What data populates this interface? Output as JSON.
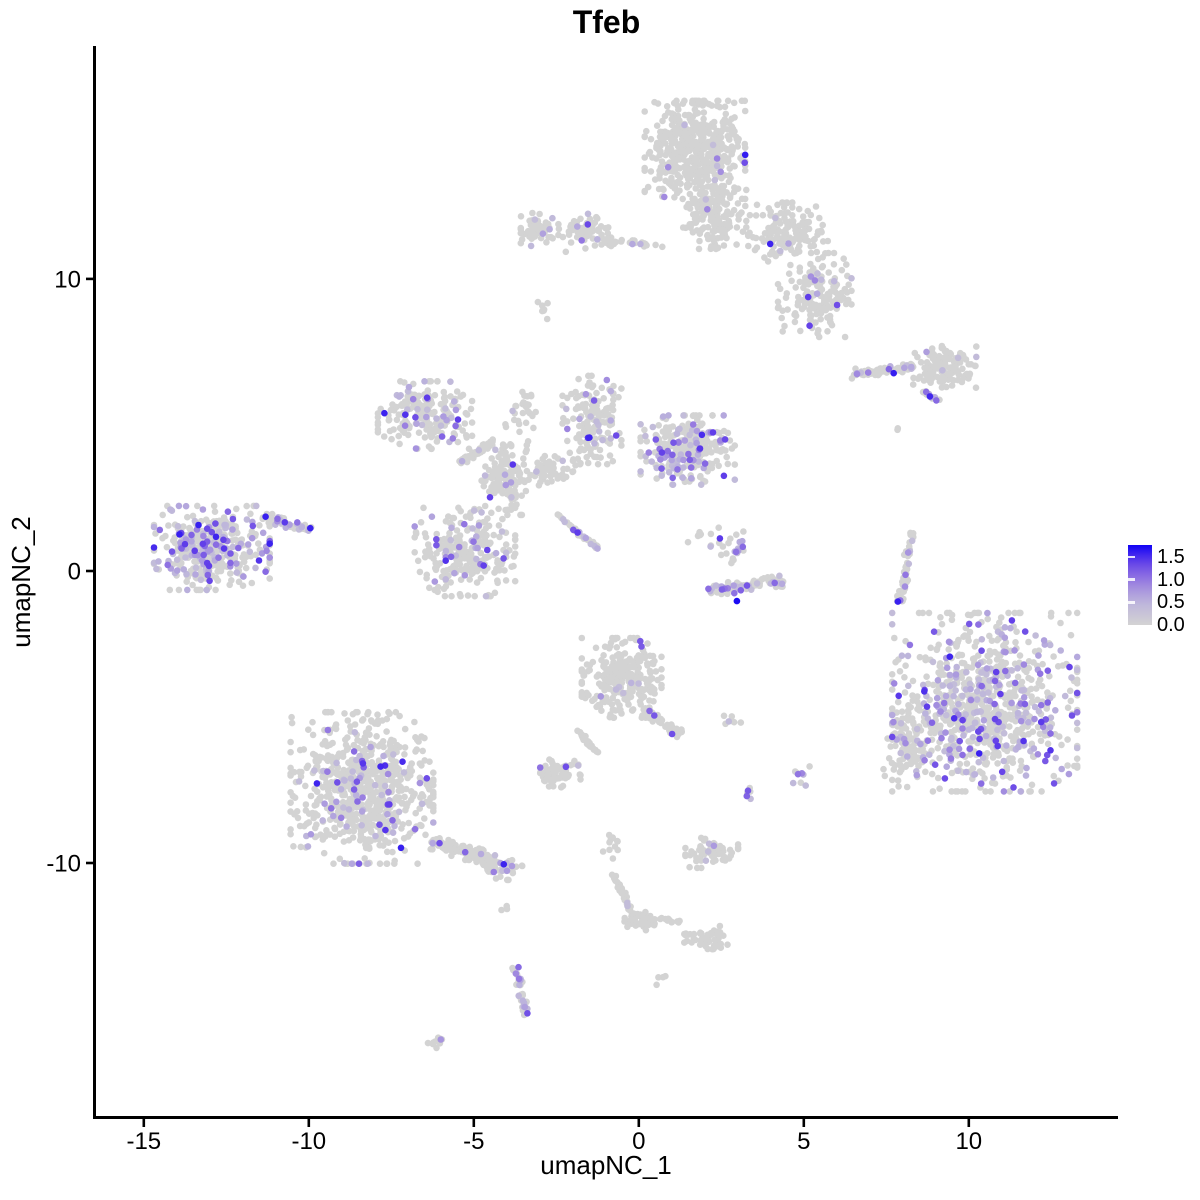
{
  "title": "Tfeb",
  "axes": {
    "x_label": "umapNC_1",
    "y_label": "umapNC_2",
    "x_tick_labels": [
      "-15",
      "-10",
      "-5",
      "0",
      "5",
      "10"
    ],
    "x_tick_values": [
      -15,
      -10,
      -5,
      0,
      5,
      10
    ],
    "y_tick_labels": [
      "10",
      "0",
      "-10"
    ],
    "y_tick_values": [
      10,
      0,
      -10
    ]
  },
  "legend": {
    "ticks": [
      "1.5",
      "1.0",
      "0.5",
      "0.0"
    ],
    "tick_values": [
      1.5,
      1.0,
      0.5,
      0.0
    ],
    "max_value": 1.75,
    "low_color": "#D3D3D3",
    "high_color": "#1002F5"
  },
  "chart_data": {
    "type": "scatter",
    "title": "Tfeb",
    "xlabel": "umapNC_1",
    "ylabel": "umapNC_2",
    "xlim": [
      -16.48,
      14.52
    ],
    "ylim": [
      -18.73,
      18.01
    ],
    "grid": false,
    "legend_position": "right",
    "color_scale": {
      "low": "#D3D3D3",
      "high": "#1002F5",
      "domain": [
        0,
        1.75
      ]
    },
    "point_radius_px": 3.3,
    "seed": 42,
    "clusters": [
      {
        "name": "top-main",
        "shape": "blob",
        "cx": 1.7,
        "cy": 14.42,
        "rx": 1.45,
        "ry": 1.6,
        "n": 520,
        "frac": 0.03
      },
      {
        "name": "top-neck",
        "shape": "blob",
        "cx": 2.3,
        "cy": 12.29,
        "rx": 0.91,
        "ry": 1.2,
        "n": 170,
        "frac": 0.04
      },
      {
        "name": "top-right-upper",
        "shape": "blob",
        "cx": 4.52,
        "cy": 11.61,
        "rx": 1.15,
        "ry": 0.96,
        "n": 150,
        "frac": 0.05
      },
      {
        "name": "top-right-lower",
        "shape": "blob",
        "cx": 5.33,
        "cy": 9.45,
        "rx": 1.06,
        "ry": 1.37,
        "n": 170,
        "frac": 0.07
      },
      {
        "name": "top-left-a",
        "shape": "blob",
        "cx": -3.0,
        "cy": 11.68,
        "rx": 0.55,
        "ry": 0.55,
        "n": 55,
        "frac": 0.1
      },
      {
        "name": "top-left-b",
        "shape": "blob",
        "cx": -1.64,
        "cy": 11.58,
        "rx": 0.76,
        "ry": 0.62,
        "n": 75,
        "frac": 0.05
      },
      {
        "name": "top-left-bridge",
        "shape": "streak",
        "cx": -0.27,
        "cy": 11.23,
        "len": 2.0,
        "w": 0.18,
        "rot": -5,
        "n": 28,
        "frac": 0.05
      },
      {
        "name": "isolated-dot",
        "shape": "blob",
        "cx": -2.85,
        "cy": 8.94,
        "rx": 0.2,
        "ry": 0.3,
        "n": 8,
        "frac": 0
      },
      {
        "name": "right-arm",
        "shape": "streak",
        "cx": 7.36,
        "cy": 6.88,
        "len": 1.9,
        "w": 0.3,
        "rot": 8,
        "n": 80,
        "frac": 0.08
      },
      {
        "name": "right-arm-head",
        "shape": "blob",
        "cx": 9.27,
        "cy": 6.99,
        "rx": 0.91,
        "ry": 0.68,
        "n": 130,
        "frac": 0.03
      },
      {
        "name": "right-arm-spur",
        "shape": "streak",
        "cx": 8.82,
        "cy": 5.99,
        "len": 0.65,
        "w": 0.18,
        "rot": -35,
        "n": 16,
        "frac": 0.35
      },
      {
        "name": "right-arm-dot",
        "shape": "blob",
        "cx": 7.91,
        "cy": 4.9,
        "rx": 0.1,
        "ry": 0.1,
        "n": 2,
        "frac": 0
      },
      {
        "name": "mid-nw",
        "shape": "blob",
        "cx": -6.48,
        "cy": 5.34,
        "rx": 1.36,
        "ry": 1.1,
        "n": 210,
        "frac": 0.12
      },
      {
        "name": "mid-nw-bridge",
        "shape": "streak",
        "cx": -4.88,
        "cy": 4.08,
        "len": 1.3,
        "w": 0.22,
        "rot": 35,
        "n": 45,
        "frac": 0.1
      },
      {
        "name": "mid-col",
        "shape": "blob",
        "cx": -4.06,
        "cy": 3.18,
        "rx": 0.67,
        "ry": 1.2,
        "n": 140,
        "frac": 0.06
      },
      {
        "name": "mid-sw",
        "shape": "blob",
        "cx": -5.27,
        "cy": 0.65,
        "rx": 1.45,
        "ry": 1.44,
        "n": 270,
        "frac": 0.13
      },
      {
        "name": "mid-v-left",
        "shape": "blob",
        "cx": -1.42,
        "cy": 5.17,
        "rx": 0.85,
        "ry": 1.44,
        "n": 170,
        "frac": 0.09
      },
      {
        "name": "mid-east",
        "shape": "blob",
        "cx": 1.48,
        "cy": 4.14,
        "rx": 1.36,
        "ry": 1.13,
        "n": 290,
        "frac": 0.22
      },
      {
        "name": "mid-diag-streak",
        "shape": "streak",
        "cx": -1.85,
        "cy": 1.34,
        "len": 1.7,
        "w": 0.15,
        "rot": -42,
        "n": 38,
        "frac": 0.3
      },
      {
        "name": "mid-center-scatter",
        "shape": "blob",
        "cx": -2.76,
        "cy": 3.46,
        "rx": 0.8,
        "ry": 0.55,
        "n": 55,
        "frac": 0.06
      },
      {
        "name": "mid-top-dots",
        "shape": "blob",
        "cx": -3.52,
        "cy": 5.45,
        "rx": 0.5,
        "ry": 0.65,
        "n": 30,
        "frac": 0.05
      },
      {
        "name": "far-left-main",
        "shape": "blob",
        "cx": -12.94,
        "cy": 0.79,
        "rx": 1.67,
        "ry": 1.37,
        "n": 430,
        "frac": 0.28
      },
      {
        "name": "far-left-tail",
        "shape": "streak",
        "cx": -10.67,
        "cy": 1.64,
        "len": 1.5,
        "w": 0.3,
        "rot": -18,
        "n": 55,
        "frac": 0.25
      },
      {
        "name": "smile-top-scatter",
        "shape": "blob",
        "cx": 2.33,
        "cy": 1.06,
        "rx": 0.8,
        "ry": 0.5,
        "n": 22,
        "frac": 0.15
      },
      {
        "name": "smile-chain",
        "shape": "streak",
        "cx": 2.97,
        "cy": 0.65,
        "len": 0.85,
        "w": 0.16,
        "rot": 62,
        "n": 18,
        "frac": 0.55
      },
      {
        "name": "smile-arc",
        "shape": "streak",
        "cx": 3.24,
        "cy": -0.51,
        "len": 2.3,
        "w": 0.38,
        "rot": 8,
        "n": 85,
        "frac": 0.33
      },
      {
        "name": "right-strip",
        "shape": "streak",
        "cx": 8.09,
        "cy": 0.14,
        "len": 2.5,
        "w": 0.25,
        "rot": 82,
        "n": 55,
        "frac": 0.12
      },
      {
        "name": "right-main",
        "shape": "blob",
        "cx": 10.48,
        "cy": -4.49,
        "rx": 2.67,
        "ry": 2.91,
        "n": 880,
        "frac": 0.3
      },
      {
        "name": "right-main-west",
        "shape": "blob",
        "cx": 8.15,
        "cy": -6.03,
        "rx": 0.7,
        "ry": 1.3,
        "n": 90,
        "frac": 0.12
      },
      {
        "name": "center-south",
        "shape": "blob",
        "cx": -0.52,
        "cy": -3.66,
        "rx": 1.15,
        "ry": 1.3,
        "n": 270,
        "frac": 0.035
      },
      {
        "name": "center-south-arm",
        "shape": "streak",
        "cx": 0.7,
        "cy": -5.17,
        "len": 1.4,
        "w": 0.3,
        "rot": -38,
        "n": 55,
        "frac": 0.04
      },
      {
        "name": "center-south-chain",
        "shape": "streak",
        "cx": -1.55,
        "cy": -5.86,
        "len": 1.0,
        "w": 0.12,
        "rot": -55,
        "n": 22,
        "frac": 0.05
      },
      {
        "name": "center-south-blob",
        "shape": "blob",
        "cx": -2.45,
        "cy": -6.88,
        "rx": 0.65,
        "ry": 0.5,
        "n": 65,
        "frac": 0.04
      },
      {
        "name": "center-south-pair",
        "shape": "blob",
        "cx": 2.76,
        "cy": -5.1,
        "rx": 0.35,
        "ry": 0.18,
        "n": 7,
        "frac": 0.3
      },
      {
        "name": "bottom-left-main",
        "shape": "blob",
        "cx": -8.39,
        "cy": -7.43,
        "rx": 2.06,
        "ry": 2.47,
        "n": 720,
        "frac": 0.11
      },
      {
        "name": "bottom-left-tail",
        "shape": "streak",
        "cx": -5.36,
        "cy": -9.59,
        "len": 2.1,
        "w": 0.5,
        "rot": -20,
        "n": 130,
        "frac": 0.08
      },
      {
        "name": "bottom-left-tip",
        "shape": "blob",
        "cx": -4.06,
        "cy": -10.21,
        "rx": 0.5,
        "ry": 0.35,
        "n": 40,
        "frac": 0.22
      },
      {
        "name": "bottom-left-dots",
        "shape": "blob",
        "cx": -4.15,
        "cy": -11.51,
        "rx": 0.25,
        "ry": 0.12,
        "n": 3,
        "frac": 0
      },
      {
        "name": "south-small",
        "shape": "blob",
        "cx": 2.21,
        "cy": -9.59,
        "rx": 0.76,
        "ry": 0.55,
        "n": 65,
        "frac": 0.07
      },
      {
        "name": "south-tiny-a",
        "shape": "blob",
        "cx": 4.88,
        "cy": -7.05,
        "rx": 0.3,
        "ry": 0.35,
        "n": 9,
        "frac": 0.3
      },
      {
        "name": "south-tiny-b",
        "shape": "blob",
        "cx": 3.3,
        "cy": -7.64,
        "rx": 0.2,
        "ry": 0.2,
        "n": 6,
        "frac": 0.4
      },
      {
        "name": "bottom-dots",
        "shape": "blob",
        "cx": -0.82,
        "cy": -9.38,
        "rx": 0.25,
        "ry": 0.45,
        "n": 12,
        "frac": 0
      },
      {
        "name": "bottom-streak",
        "shape": "streak",
        "cx": -0.45,
        "cy": -11.13,
        "len": 1.7,
        "w": 0.16,
        "rot": -68,
        "n": 40,
        "frac": 0.06
      },
      {
        "name": "bottom-blob",
        "shape": "blob",
        "cx": 0.06,
        "cy": -11.99,
        "rx": 0.5,
        "ry": 0.3,
        "n": 45,
        "frac": 0
      },
      {
        "name": "bottom-chain",
        "shape": "streak",
        "cx": 0.88,
        "cy": -11.95,
        "len": 0.8,
        "w": 0.12,
        "rot": -8,
        "n": 12,
        "frac": 0.12
      },
      {
        "name": "bottom-east-blob",
        "shape": "blob",
        "cx": 2.06,
        "cy": -12.53,
        "rx": 0.65,
        "ry": 0.4,
        "n": 50,
        "frac": 0
      },
      {
        "name": "far-bottom-chain",
        "shape": "streak",
        "cx": -3.58,
        "cy": -14.38,
        "len": 1.7,
        "w": 0.22,
        "rot": -78,
        "n": 34,
        "frac": 0.4
      },
      {
        "name": "far-bottom-pair",
        "shape": "blob",
        "cx": 0.61,
        "cy": -14.01,
        "rx": 0.25,
        "ry": 0.15,
        "n": 4,
        "frac": 0.25
      },
      {
        "name": "far-bottom-tiny",
        "shape": "blob",
        "cx": -6.12,
        "cy": -16.13,
        "rx": 0.3,
        "ry": 0.22,
        "n": 12,
        "frac": 0.1
      }
    ],
    "special_points": [
      {
        "x": 2.97,
        "y": -1.03,
        "value": 1.7
      }
    ]
  }
}
